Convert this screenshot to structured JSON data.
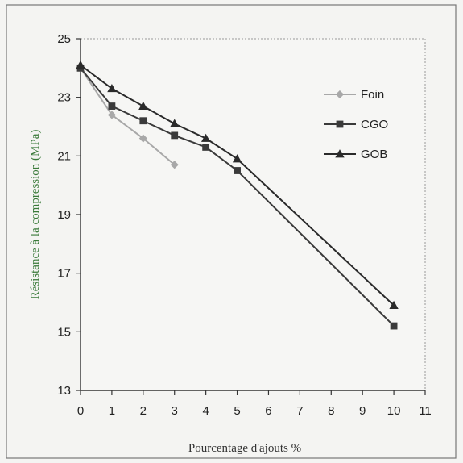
{
  "chart_data": {
    "type": "line",
    "title": "",
    "xlabel": "Pourcentage d'ajouts %",
    "ylabel": "Résistance à la compression (MPa)",
    "xlim": [
      0,
      11
    ],
    "ylim": [
      13,
      25
    ],
    "xticks": [
      0,
      1,
      2,
      3,
      4,
      5,
      6,
      7,
      8,
      9,
      10,
      11
    ],
    "yticks": [
      13,
      15,
      17,
      19,
      21,
      23,
      25
    ],
    "grid": false,
    "legend_position": "top-right",
    "series": [
      {
        "name": "Foin",
        "marker": "diamond",
        "color": "#a8a8a8",
        "x": [
          0,
          1,
          2,
          3
        ],
        "y": [
          24.0,
          22.4,
          21.6,
          20.7
        ]
      },
      {
        "name": "CGO",
        "marker": "square",
        "color": "#3a3a3a",
        "x": [
          0,
          1,
          2,
          3,
          4,
          5,
          10
        ],
        "y": [
          24.0,
          22.7,
          22.2,
          21.7,
          21.3,
          20.5,
          15.2
        ]
      },
      {
        "name": "GOB",
        "marker": "triangle",
        "color": "#2a2a2a",
        "x": [
          0,
          1,
          2,
          3,
          4,
          5,
          10
        ],
        "y": [
          24.1,
          23.3,
          22.7,
          22.1,
          21.6,
          20.9,
          15.9
        ]
      }
    ],
    "colors": {
      "axis": "#333333",
      "ylabel": "#3a7a3a",
      "xlabel": "#333333"
    }
  }
}
